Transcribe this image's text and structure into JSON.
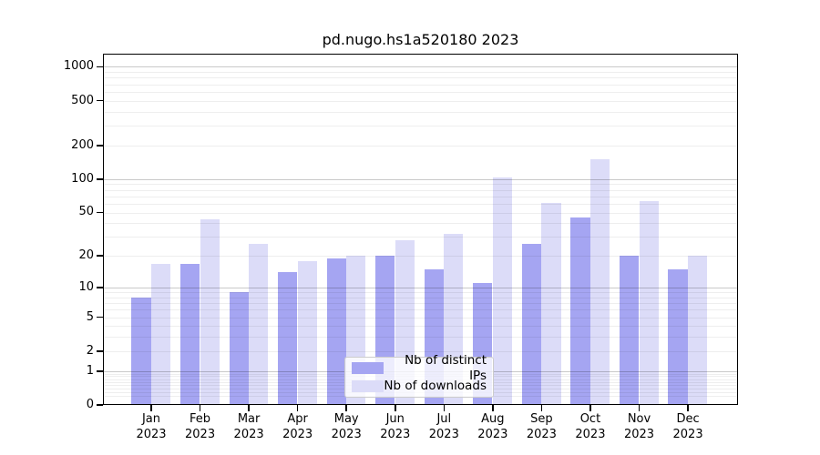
{
  "figure": {
    "title": "pd.nugo.hs1a520180 2023",
    "background": "#ffffff"
  },
  "chart_data": {
    "type": "bar",
    "title": "pd.nugo.hs1a520180 2023",
    "categories": [
      "Jan 2023",
      "Feb 2023",
      "Mar 2023",
      "Apr 2023",
      "May 2023",
      "Jun 2023",
      "Jul 2023",
      "Aug 2023",
      "Sep 2023",
      "Oct 2023",
      "Nov 2023",
      "Dec 2023"
    ],
    "months": [
      "Jan",
      "Feb",
      "Mar",
      "Apr",
      "May",
      "Jun",
      "Jul",
      "Aug",
      "Sep",
      "Oct",
      "Nov",
      "Dec"
    ],
    "year": "2023",
    "series": [
      {
        "name": "Nb of distinct IPs",
        "color": "#a5a5f2",
        "values": [
          8,
          17,
          9,
          14,
          19,
          20,
          15,
          11,
          26,
          45,
          20,
          15
        ]
      },
      {
        "name": "Nb of downloads",
        "color": "#dcdcf8",
        "values": [
          17,
          43,
          26,
          18,
          20,
          28,
          32,
          104,
          61,
          150,
          63,
          20
        ]
      }
    ],
    "yscale": "log1p",
    "yticks": [
      0,
      1,
      2,
      5,
      10,
      20,
      50,
      100,
      200,
      500,
      1000
    ],
    "ylim": [
      0,
      1306
    ],
    "xlabel": "",
    "ylabel": "",
    "grid": "horizontal",
    "legend_position": "lower-center",
    "colors": {
      "major_gridline": "rgba(0,0,0,0.21)",
      "minor_gridline": "rgba(0,0,0,0.065)",
      "axis": "#000000"
    }
  }
}
